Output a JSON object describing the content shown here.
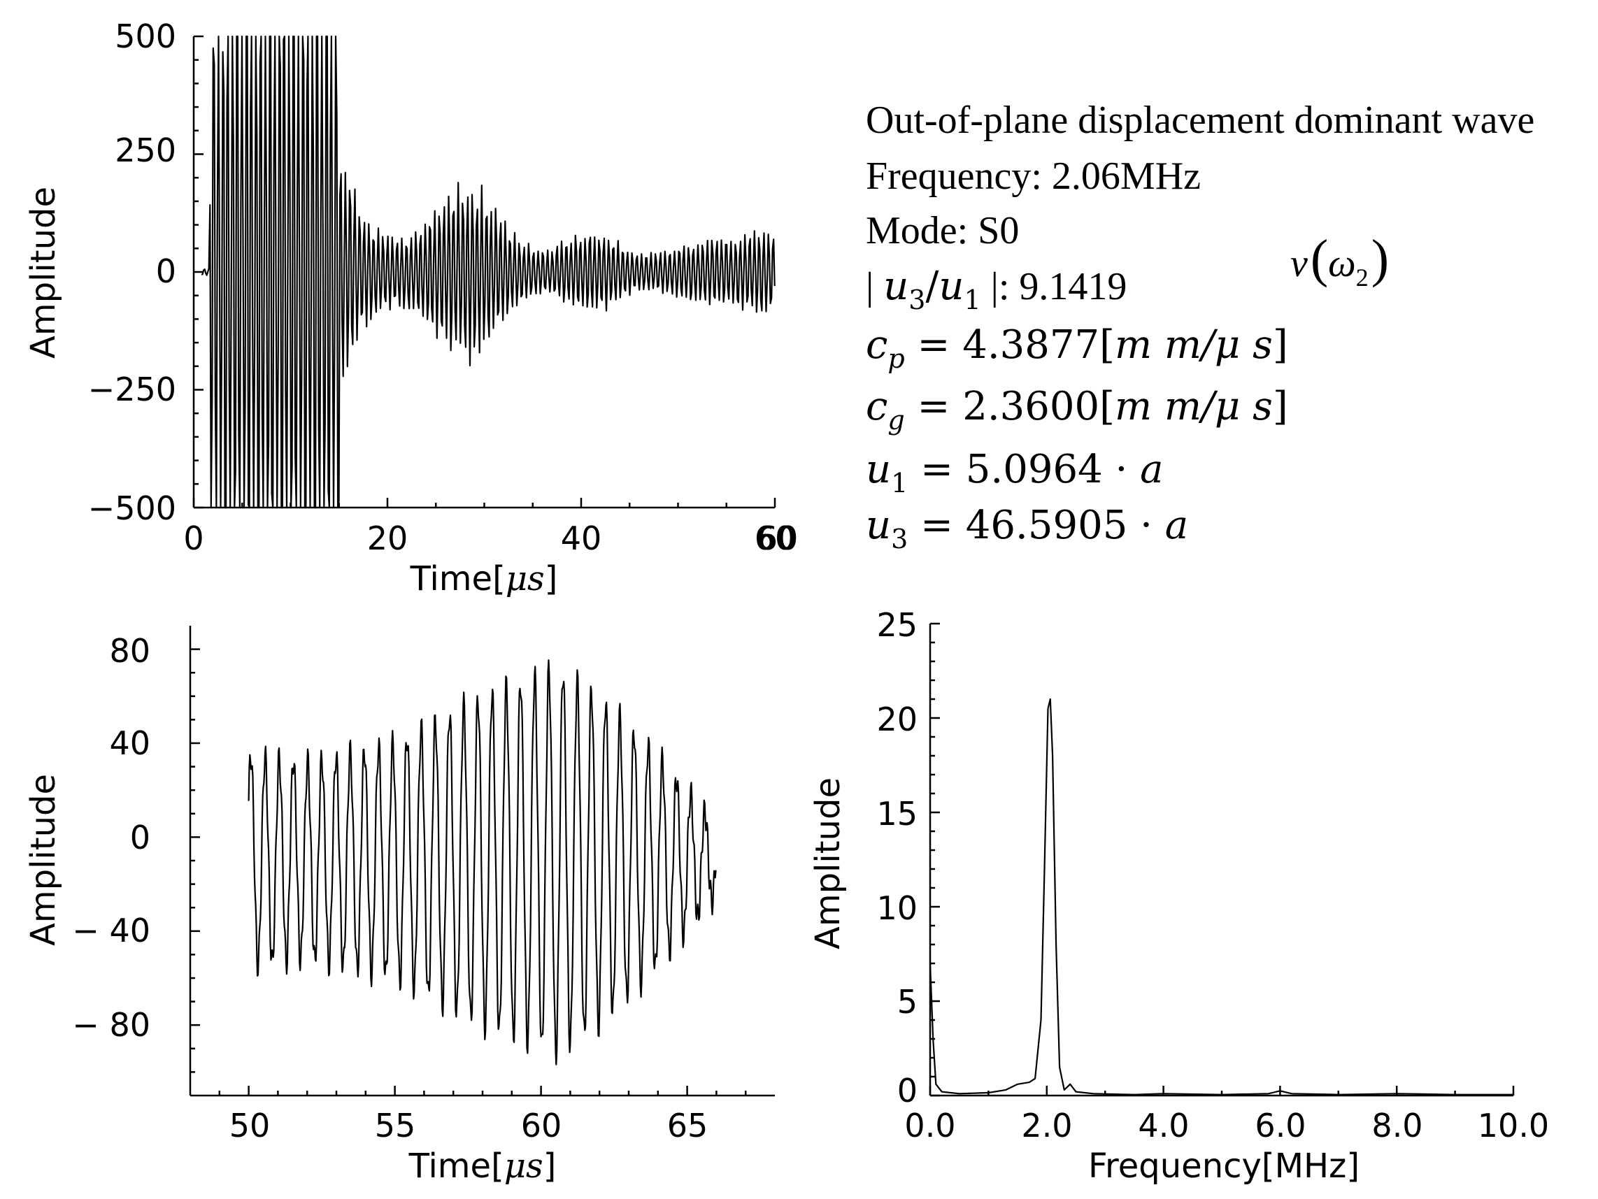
{
  "chart_data": [
    {
      "type": "line",
      "name": "full-signal",
      "title": "",
      "xlabel_prefix": "Time",
      "xlabel_unit": "μs",
      "ylabel": "Amplitude",
      "xlim": [
        0,
        60
      ],
      "ylim": [
        -500,
        500
      ],
      "xticks": [
        0,
        20,
        40,
        60
      ],
      "xtick_labels": [
        "0",
        "20",
        "40",
        "60"
      ],
      "yticks": [
        500,
        250,
        0,
        -250,
        -500
      ],
      "ytick_labels": [
        "500",
        "250",
        "0",
        "−250",
        "−500"
      ],
      "series": [
        {
          "name": "time signal",
          "description": "saturated burst 3-15 μs, followed by wave packets",
          "burst_start": 3,
          "burst_end": 15,
          "packets": [
            {
              "center": 28,
              "amplitude": 180,
              "width": 5
            },
            {
              "center": 41,
              "amplitude": 70,
              "width": 4
            },
            {
              "center": 60,
              "amplitude": 75,
              "width": 5
            },
            {
              "center": 52,
              "amplitude": 45,
              "width": 4
            }
          ],
          "noise_amplitude": 25
        }
      ]
    },
    {
      "type": "line",
      "name": "windowed-signal",
      "title": "",
      "xlabel_prefix": "Time",
      "xlabel_unit": "μs",
      "ylabel": "Amplitude",
      "xlim": [
        48,
        68
      ],
      "ylim": [
        -110,
        90
      ],
      "xticks": [
        50,
        55,
        60,
        65
      ],
      "xtick_labels": [
        "50",
        "55",
        "60",
        "65"
      ],
      "yticks": [
        80,
        40,
        0,
        -40,
        -80
      ],
      "ytick_labels": [
        "80",
        "40",
        "0",
        "− 40",
        "− 80"
      ],
      "series": [
        {
          "name": "windowed time signal",
          "t_start": 50,
          "t_end": 66,
          "frequency_mhz": 2.06,
          "envelope_points": [
            [
              50,
              45
            ],
            [
              52,
              42
            ],
            [
              55,
              50
            ],
            [
              58,
              70
            ],
            [
              60.5,
              82
            ],
            [
              62,
              70
            ],
            [
              64,
              45
            ],
            [
              66,
              15
            ]
          ],
          "offset": -10
        }
      ]
    },
    {
      "type": "line",
      "name": "spectrum",
      "title": "",
      "xlabel": "Frequency[MHz]",
      "ylabel": "Amplitude",
      "xlim": [
        0,
        10
      ],
      "ylim": [
        0,
        25
      ],
      "xticks": [
        0,
        2,
        4,
        6,
        8,
        10
      ],
      "xtick_labels": [
        "0.0",
        "2.0",
        "4.0",
        "6.0",
        "8.0",
        "10.0"
      ],
      "yticks": [
        0,
        5,
        10,
        15,
        20,
        25
      ],
      "ytick_labels": [
        "0",
        "5",
        "10",
        "15",
        "20",
        "25"
      ],
      "series": [
        {
          "name": "amplitude spectrum",
          "points": [
            [
              0.0,
              7.0
            ],
            [
              0.05,
              3.0
            ],
            [
              0.1,
              0.6
            ],
            [
              0.2,
              0.2
            ],
            [
              0.5,
              0.1
            ],
            [
              1.0,
              0.15
            ],
            [
              1.3,
              0.3
            ],
            [
              1.5,
              0.6
            ],
            [
              1.7,
              0.7
            ],
            [
              1.8,
              0.9
            ],
            [
              1.9,
              4.0
            ],
            [
              1.96,
              12.0
            ],
            [
              2.02,
              20.5
            ],
            [
              2.06,
              21.0
            ],
            [
              2.1,
              18.0
            ],
            [
              2.16,
              8.0
            ],
            [
              2.22,
              1.5
            ],
            [
              2.3,
              0.3
            ],
            [
              2.4,
              0.6
            ],
            [
              2.5,
              0.2
            ],
            [
              2.8,
              0.1
            ],
            [
              3.5,
              0.05
            ],
            [
              4.0,
              0.1
            ],
            [
              5.0,
              0.05
            ],
            [
              5.8,
              0.1
            ],
            [
              6.0,
              0.25
            ],
            [
              6.2,
              0.1
            ],
            [
              7.0,
              0.05
            ],
            [
              8.0,
              0.1
            ],
            [
              9.0,
              0.05
            ],
            [
              10.0,
              0.05
            ]
          ]
        }
      ]
    }
  ],
  "info": {
    "line1": "Out-of-plane displacement dominant wave",
    "line2": "Frequency:  2.06MHz",
    "line3": "Mode:  S0",
    "ratio_label_start": "| ",
    "ratio_u3": "u",
    "ratio_u3_sub": "3",
    "ratio_slash": "/",
    "ratio_u1": "u",
    "ratio_u1_sub": "1",
    "ratio_label_end": " |: 9.1419",
    "cp_symbol": "c",
    "cp_sub": "p",
    "cp_value": " = 4.3877[",
    "cp_unit": "m m/μ s",
    "cp_close": "]",
    "cg_symbol": "c",
    "cg_sub": "g",
    "cg_value": " = 2.3600[",
    "cg_unit": "m m/μ s",
    "cg_close": "]",
    "u1_symbol": "u",
    "u1_sub": "1",
    "u1_value": " = 5.0964 · ",
    "u1_a": "a",
    "u3_symbol": "u",
    "u3_sub": "3",
    "u3_value": " = 46.5905 · ",
    "u3_a": "a",
    "nu_v": "v",
    "nu_open": "(",
    "nu_omega": "ω",
    "nu_omega_sub": "2",
    "nu_close": ")"
  }
}
